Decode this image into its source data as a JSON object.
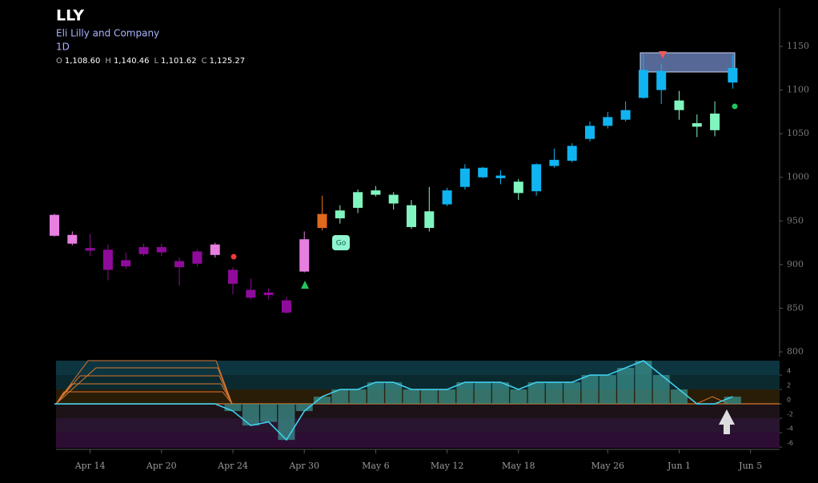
{
  "header": {
    "symbol": "LLY",
    "name": "Eli Lilly and Company",
    "interval": "1D",
    "ohlc": [
      {
        "key": "O",
        "value": "1,108.60"
      },
      {
        "key": "H",
        "value": "1,140.46"
      },
      {
        "key": "L",
        "value": "1,101.62"
      },
      {
        "key": "C",
        "value": "1,125.27"
      }
    ]
  },
  "signal_label": "Go",
  "chart_data": [
    {
      "type": "candlestick",
      "categories": [
        null,
        null,
        "Apr 14",
        null,
        null,
        null,
        "Apr 20",
        null,
        null,
        null,
        "Apr 24",
        null,
        null,
        null,
        "Apr 30",
        null,
        null,
        null,
        "May 6",
        null,
        null,
        null,
        "May 12",
        null,
        null,
        null,
        "May 18",
        null,
        null,
        null,
        null,
        "May 26",
        null,
        null,
        null,
        "Jun 1",
        null,
        null,
        null,
        "Jun 5"
      ],
      "open": [
        957,
        934,
        919,
        917,
        905,
        920,
        920,
        904,
        915,
        911,
        894,
        871,
        868,
        859,
        892,
        942,
        953,
        965,
        980,
        980,
        968,
        942,
        969,
        989,
        1011,
        1002,
        995,
        984,
        1013,
        1019,
        1044,
        1059,
        1066,
        1091,
        1100,
        1088,
        1062,
        1054,
        1108.6,
        null
      ],
      "high": [
        958,
        938,
        935,
        923,
        914,
        924,
        924,
        908,
        917,
        925,
        897,
        884,
        873,
        863,
        938,
        979,
        968,
        986,
        990,
        983,
        974,
        989,
        988,
        1015,
        1012,
        1008,
        998,
        1016,
        1033,
        1039,
        1064,
        1075,
        1087,
        1141,
        1130,
        1099,
        1072,
        1087,
        1140.46,
        null
      ],
      "low": [
        932,
        922,
        910,
        882,
        895,
        910,
        910,
        876,
        898,
        908,
        866,
        860,
        860,
        844,
        891,
        939,
        947,
        959,
        978,
        963,
        941,
        938,
        967,
        986,
        999,
        992,
        974,
        979,
        1011,
        1017,
        1041,
        1056,
        1064,
        1090,
        1084,
        1066,
        1046,
        1047,
        1101.62,
        null
      ],
      "close": [
        933,
        924,
        916,
        894,
        898,
        912,
        914,
        897,
        901,
        923,
        878,
        862,
        865,
        845,
        929,
        958,
        962,
        983,
        985,
        970,
        943,
        961,
        985,
        1010,
        1000,
        999,
        982,
        1015,
        1020,
        1036,
        1059,
        1069,
        1077,
        1123,
        1122,
        1077,
        1058,
        1073,
        1125.27,
        null
      ],
      "colors": [
        "#e77fe0",
        "#e77fe0",
        "#8f0b9b",
        "#8f0b9b",
        "#8f0b9b",
        "#8f0b9b",
        "#8f0b9b",
        "#8f0b9b",
        "#8f0b9b",
        "#e77fe0",
        "#8f0b9b",
        "#8f0b9b",
        "#8f0b9b",
        "#8f0b9b",
        "#e77fe0",
        "#e0691d",
        "#80f5c0",
        "#80f5c0",
        "#80f5c0",
        "#80f5c0",
        "#80f5c0",
        "#80f5c0",
        "#10b4f0",
        "#10b4f0",
        "#10b4f0",
        "#10b4f0",
        "#80f5c0",
        "#10b4f0",
        "#10b4f0",
        "#10b4f0",
        "#10b4f0",
        "#10b4f0",
        "#10b4f0",
        "#10b4f0",
        "#10b4f0",
        "#80f5c0",
        "#80f5c0",
        "#80f5c0",
        "#10b4f0",
        null
      ],
      "ylim": [
        794.5,
        1194
      ],
      "yticks": [
        800,
        850,
        900,
        950,
        1000,
        1050,
        1100,
        1150
      ]
    },
    {
      "type": "oscillator",
      "values": [
        0,
        0,
        0,
        0,
        0,
        0,
        0,
        0,
        0,
        0,
        -1,
        -3,
        -2.5,
        -5,
        -1,
        1,
        2,
        2,
        3,
        3,
        2,
        2,
        2,
        3,
        3,
        3,
        2,
        3,
        3,
        3,
        4,
        4,
        5,
        6,
        4,
        2,
        0,
        0,
        1,
        null
      ],
      "color": "#3fd0ee",
      "bar_color": "#3a8f8a",
      "ylim": [
        -6.1,
        6
      ],
      "yticks": [
        4,
        2,
        0,
        -2,
        -4,
        -6
      ]
    }
  ]
}
